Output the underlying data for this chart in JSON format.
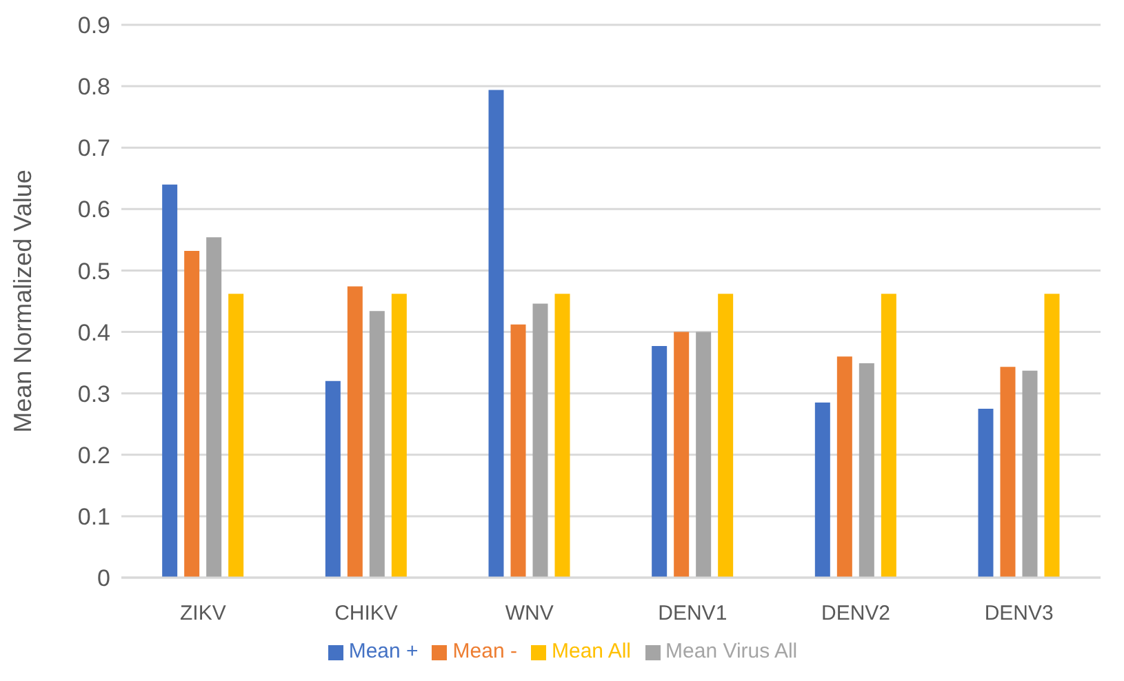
{
  "chart_data": {
    "type": "bar",
    "ylabel": "Mean Normalized Value",
    "categories": [
      "ZIKV",
      "CHIKV",
      "WNV",
      "DENV1",
      "DENV2",
      "DENV3"
    ],
    "series": [
      {
        "name": "Mean +",
        "color": "#4472c4",
        "values": [
          0.64,
          0.32,
          0.794,
          0.377,
          0.285,
          0.275
        ]
      },
      {
        "name": "Mean -",
        "color": "#ed7d31",
        "values": [
          0.532,
          0.474,
          0.412,
          0.4,
          0.36,
          0.343
        ]
      },
      {
        "name": "Mean Virus All",
        "color": "#a5a5a5",
        "values": [
          0.554,
          0.434,
          0.446,
          0.4,
          0.349,
          0.337
        ]
      },
      {
        "name": "Mean All",
        "color": "#ffc000",
        "values": [
          0.462,
          0.462,
          0.462,
          0.462,
          0.462,
          0.462
        ]
      }
    ],
    "ylim": [
      0,
      0.9
    ],
    "yticks": [
      0,
      0.1,
      0.2,
      0.3,
      0.4,
      0.5,
      0.6,
      0.7,
      0.8,
      0.9
    ],
    "grid": "y",
    "legend": "bottom"
  }
}
